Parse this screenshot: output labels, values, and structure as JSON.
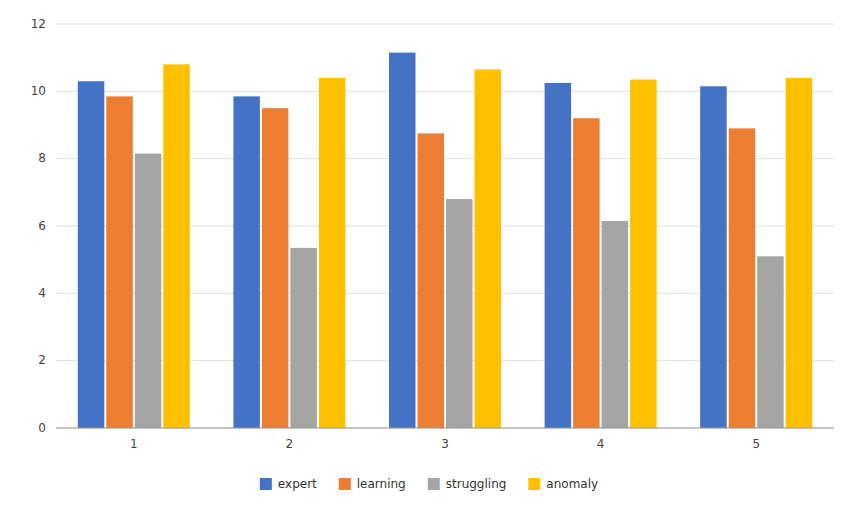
{
  "chart_data": {
    "type": "bar",
    "categories": [
      "1",
      "2",
      "3",
      "4",
      "5"
    ],
    "series": [
      {
        "name": "expert",
        "color": "#4472C4",
        "values": [
          10.3,
          9.85,
          11.15,
          10.25,
          10.15
        ]
      },
      {
        "name": "learning",
        "color": "#ED7D31",
        "values": [
          9.85,
          9.5,
          8.75,
          9.2,
          8.9
        ]
      },
      {
        "name": "struggling",
        "color": "#A5A5A5",
        "values": [
          8.15,
          5.35,
          6.8,
          6.15,
          5.1
        ]
      },
      {
        "name": "anomaly",
        "color": "#FFC000",
        "values": [
          10.8,
          10.4,
          10.65,
          10.35,
          10.4
        ]
      }
    ],
    "ylim": [
      0,
      12
    ],
    "yticks": [
      0,
      2,
      4,
      6,
      8,
      10,
      12
    ],
    "grid": true,
    "legend": "bottom"
  }
}
